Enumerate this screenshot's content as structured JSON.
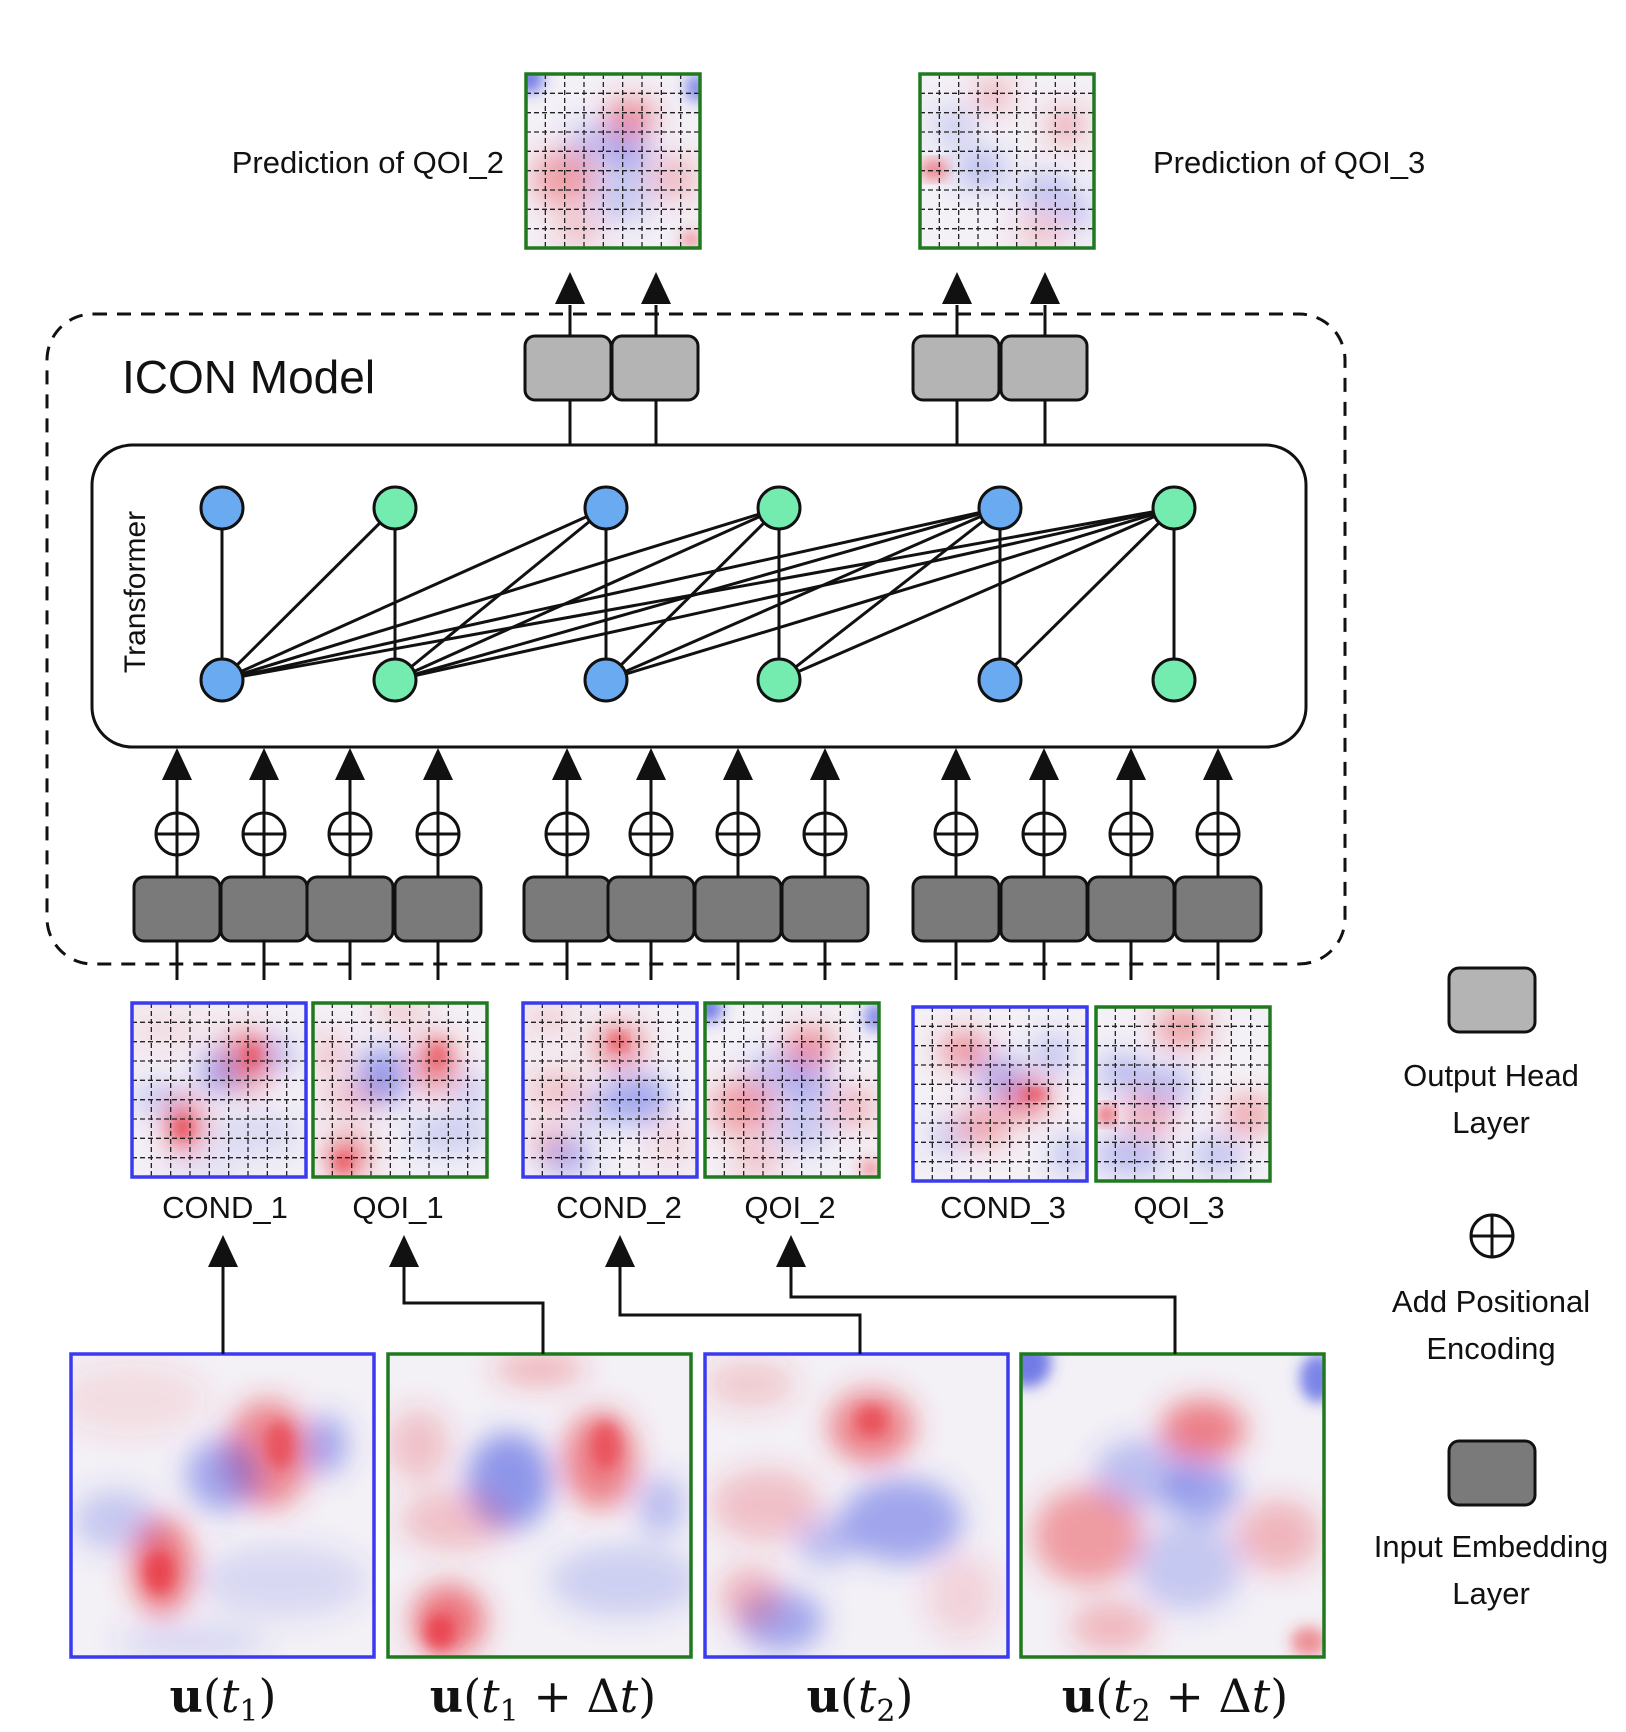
{
  "model": {
    "title": "ICON Model",
    "transformer_label": "Transformer"
  },
  "predictions": [
    {
      "label": "Prediction of QOI_2"
    },
    {
      "label": "Prediction of QOI_3"
    }
  ],
  "patch_pairs": [
    {
      "cond": "COND_1",
      "qoi": "QOI_1"
    },
    {
      "cond": "COND_2",
      "qoi": "QOI_2"
    },
    {
      "cond": "COND_3",
      "qoi": "QOI_3"
    }
  ],
  "snapshots": [
    {
      "base": "u",
      "arg": "t",
      "sub": "1",
      "extra": ""
    },
    {
      "base": "u",
      "arg": "t",
      "sub": "1",
      "extra": "+ Δt"
    },
    {
      "base": "u",
      "arg": "t",
      "sub": "2",
      "extra": ""
    },
    {
      "base": "u",
      "arg": "t",
      "sub": "2",
      "extra": "+ Δt"
    }
  ],
  "legend": {
    "output_head": [
      "Output Head",
      "Layer"
    ],
    "positional": [
      "Add Positional",
      "Encoding"
    ],
    "input_embedding": [
      "Input Embedding",
      "Layer"
    ]
  },
  "colors": {
    "cond_frame": "#3a3af0",
    "qoi_frame": "#1f7a1f",
    "node_cond": "#6aaaf0",
    "node_qoi": "#74ecb0",
    "output_head_fill": "#b4b4b4",
    "input_embedding_fill": "#7a7a7a",
    "field_positive": "#e8303a",
    "field_negative": "#3a4ae0"
  }
}
